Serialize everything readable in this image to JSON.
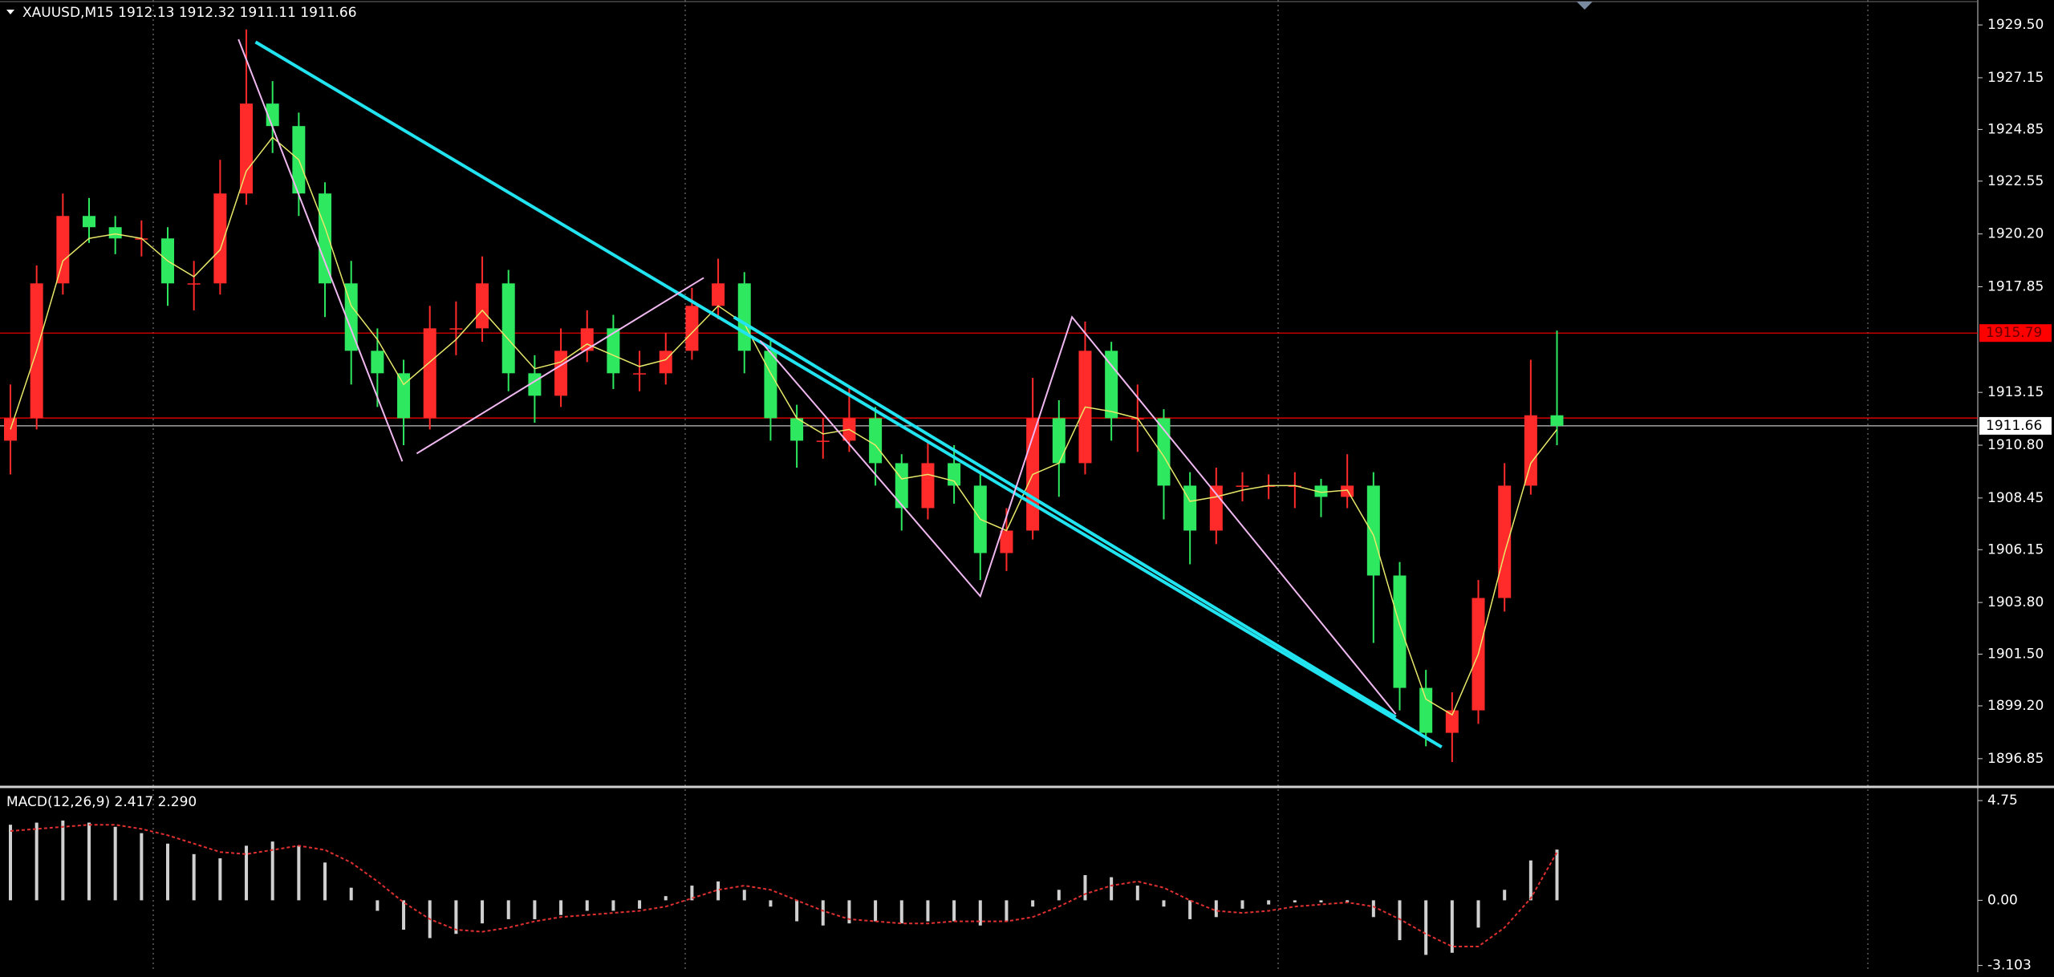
{
  "chart_data": [
    {
      "type": "candlestick",
      "title": "XAUUSD,M15  1912.13 1912.32 1911.11 1911.66",
      "up_color": "#ff2a2a",
      "down_color": "#2ee860",
      "ma_color": "#e8e86a",
      "open": [
        1911,
        1912,
        1918,
        1921,
        1920.5,
        1920,
        1920,
        1918,
        1918,
        1922,
        1926,
        1925,
        1922,
        1918,
        1915,
        1914,
        1912,
        1916,
        1916,
        1918,
        1914,
        1913,
        1915,
        1916,
        1914,
        1914,
        1915,
        1917,
        1918,
        1915,
        1912,
        1911,
        1911,
        1912,
        1910,
        1908,
        1910,
        1909,
        1906,
        1907,
        1912,
        1910,
        1915,
        1912,
        1912,
        1909,
        1907,
        1909,
        1909,
        1909,
        1909,
        1908.5,
        1909,
        1905,
        1900,
        1898,
        1899,
        1904,
        1909,
        1912.13
      ],
      "high": [
        1913.5,
        1918.8,
        1922,
        1921.8,
        1921,
        1920.8,
        1920.5,
        1919,
        1923.5,
        1929.3,
        1927,
        1925.6,
        1922.5,
        1919,
        1916,
        1914.6,
        1917,
        1917.2,
        1919.2,
        1918.6,
        1914.8,
        1916,
        1916.8,
        1916.6,
        1915,
        1915.8,
        1917.8,
        1919.1,
        1918.5,
        1915.5,
        1912.6,
        1912,
        1913.4,
        1912.5,
        1910.4,
        1911,
        1910.8,
        1909.5,
        1908,
        1913.8,
        1912.8,
        1916.3,
        1915.4,
        1913.5,
        1912.4,
        1909.6,
        1909.8,
        1909.6,
        1909.5,
        1909.6,
        1909.3,
        1910.4,
        1909.6,
        1905.6,
        1900.8,
        1899.8,
        1904.8,
        1910,
        1914.6,
        1915.9
      ],
      "low": [
        1909.5,
        1911.5,
        1917.5,
        1919.8,
        1919.3,
        1919.2,
        1917,
        1916.8,
        1917.5,
        1921.5,
        1923.8,
        1921,
        1916.5,
        1913.5,
        1912.5,
        1910.8,
        1911.5,
        1914.8,
        1915.4,
        1913.2,
        1911.8,
        1912.5,
        1914.5,
        1913.3,
        1913.2,
        1913.5,
        1914.6,
        1916.4,
        1914,
        1911,
        1909.8,
        1910.2,
        1910.5,
        1909,
        1907,
        1907.5,
        1908.2,
        1904.8,
        1905.2,
        1906.6,
        1908.5,
        1909.5,
        1911,
        1910.5,
        1907.5,
        1905.5,
        1906.4,
        1908.3,
        1908.4,
        1908,
        1907.6,
        1908,
        1902,
        1899,
        1897.4,
        1896.7,
        1898.4,
        1903.4,
        1908.6,
        1910.8
      ],
      "close": [
        1912,
        1918,
        1921,
        1920.5,
        1920,
        1920,
        1918,
        1918,
        1922,
        1926,
        1925,
        1922,
        1918,
        1915,
        1914,
        1912,
        1916,
        1916,
        1918,
        1914,
        1913,
        1915,
        1916,
        1914,
        1914,
        1915,
        1917,
        1918,
        1915,
        1912,
        1911,
        1911,
        1912,
        1910,
        1908,
        1910,
        1909,
        1906,
        1907,
        1912,
        1910,
        1915,
        1912,
        1912,
        1909,
        1907,
        1909,
        1909,
        1909,
        1909,
        1908.5,
        1909,
        1905,
        1900,
        1898,
        1899,
        1904,
        1909,
        1912.13,
        1911.66
      ],
      "ma": [
        1911.5,
        1915,
        1919,
        1920,
        1920.2,
        1920,
        1919,
        1918.3,
        1919.5,
        1923,
        1924.5,
        1923.5,
        1920.5,
        1917,
        1915.5,
        1913.5,
        1914.5,
        1915.5,
        1916.8,
        1915.5,
        1914.2,
        1914.5,
        1915.3,
        1914.8,
        1914.3,
        1914.6,
        1915.8,
        1917,
        1916.2,
        1914,
        1912,
        1911.3,
        1911.5,
        1910.8,
        1909.3,
        1909.5,
        1909.2,
        1907.5,
        1907,
        1909.5,
        1910,
        1912.5,
        1912.3,
        1912,
        1910.3,
        1908.3,
        1908.5,
        1908.8,
        1909,
        1909,
        1908.7,
        1908.8,
        1906.8,
        1902.8,
        1899.5,
        1898.8,
        1901.5,
        1906,
        1910,
        1911.5
      ],
      "ylim": [
        1895.63,
        1930.61
      ],
      "yticks": [
        {
          "value": 1929.5,
          "label": "1929.50"
        },
        1927.15,
        1924.85,
        1922.55,
        {
          "value": 1920.2,
          "label": "1920.20"
        },
        1917.85,
        1913.15,
        {
          "value": 1910.8,
          "label": "1910.80"
        },
        1908.45,
        1906.15,
        {
          "value": 1903.8,
          "label": "1903.80"
        },
        {
          "value": 1901.5,
          "label": "1901.50"
        },
        {
          "value": 1899.2,
          "label": "1899.20"
        },
        1896.85
      ],
      "hlines": [
        {
          "value": 1915.79,
          "color": "#ff0000",
          "tag": true
        },
        {
          "value": 1912.01,
          "color": "#ff0000",
          "tag": false
        },
        {
          "value": 1911.66,
          "color": "#c0c0c0",
          "tag": true
        }
      ],
      "trendlines": [
        {
          "color": "#22e4f0",
          "x": [
            9.35,
            54.6
          ],
          "y": [
            1928.74,
            1897.37
          ]
        },
        {
          "color": "#22e4f0",
          "x": [
            27.6,
            52.85
          ],
          "y": [
            1916.5,
            1898.7
          ]
        },
        {
          "color": "#f0b8f0",
          "x": [
            8.7,
            14.95,
            null,
            15.5,
            26.45,
            null,
            28.6,
            37,
            40.5,
            52.85
          ],
          "y": [
            1928.86,
            1910.08,
            null,
            1910.43,
            1918.25,
            null,
            1915.45,
            1904.08,
            1916.5,
            1898.83
          ]
        }
      ]
    },
    {
      "type": "macd",
      "title": "MACD(12,26,9) 2.417 2.290",
      "color": "#d0d0d0",
      "signal_color": "#e03030",
      "histogram": [
        3.6,
        3.7,
        3.8,
        3.7,
        3.5,
        3.2,
        2.7,
        2.2,
        2.0,
        2.6,
        2.8,
        2.6,
        1.8,
        0.6,
        -0.5,
        -1.4,
        -1.8,
        -1.6,
        -1.1,
        -0.9,
        -0.9,
        -0.7,
        -0.5,
        -0.5,
        -0.4,
        0.2,
        0.7,
        0.9,
        0.5,
        -0.3,
        -1.0,
        -1.2,
        -1.1,
        -1.0,
        -1.1,
        -1.0,
        -1.0,
        -1.2,
        -1.0,
        -0.3,
        0.5,
        1.2,
        1.1,
        0.7,
        -0.3,
        -0.9,
        -0.8,
        -0.4,
        -0.2,
        -0.1,
        -0.1,
        -0.1,
        -0.8,
        -1.9,
        -2.6,
        -2.5,
        -1.3,
        0.5,
        1.9,
        2.417
      ],
      "signal": [
        3.3,
        3.4,
        3.5,
        3.6,
        3.6,
        3.4,
        3.1,
        2.7,
        2.3,
        2.2,
        2.4,
        2.6,
        2.4,
        1.8,
        0.9,
        -0.1,
        -0.9,
        -1.4,
        -1.5,
        -1.3,
        -1.0,
        -0.8,
        -0.7,
        -0.6,
        -0.5,
        -0.3,
        0.1,
        0.5,
        0.7,
        0.5,
        0.0,
        -0.5,
        -0.9,
        -1.0,
        -1.1,
        -1.1,
        -1.0,
        -1.0,
        -1.0,
        -0.8,
        -0.3,
        0.3,
        0.7,
        0.9,
        0.6,
        0.0,
        -0.5,
        -0.6,
        -0.5,
        -0.3,
        -0.2,
        -0.1,
        -0.3,
        -0.9,
        -1.6,
        -2.2,
        -2.2,
        -1.3,
        0.1,
        2.29
      ],
      "ylim": [
        -3.31,
        5.25
      ],
      "yticks": [
        4.75,
        {
          "value": 0,
          "label": "0.00"
        },
        -3.103
      ]
    }
  ]
}
